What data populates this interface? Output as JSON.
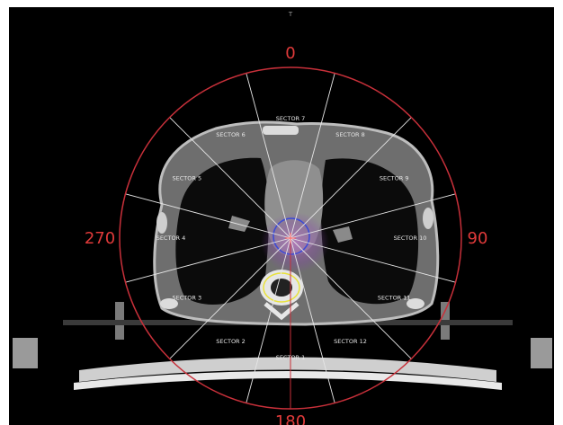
{
  "orientation_marker": "T",
  "angle_labels": {
    "top": "0",
    "right": "90",
    "bottom": "180",
    "left": "270"
  },
  "sectors": [
    "SECTOR 1",
    "SECTOR 2",
    "SECTOR 3",
    "SECTOR 4",
    "SECTOR 5",
    "SECTOR 6",
    "SECTOR 7",
    "SECTOR 8",
    "SECTOR 9",
    "SECTOR 10",
    "SECTOR 11",
    "SECTOR 12"
  ],
  "colors": {
    "background": "#000000",
    "ring": "#c8303a",
    "sector_lines": "#e6e6e6",
    "angle_text": "#e03a3a",
    "bone": "#d9d9d9",
    "soft_tissue": "#6e6e6e",
    "heart": "#8f8f8f",
    "lung": "#0b0b0b",
    "dose_magenta": "#a04ab8",
    "dose_blue": "#3a4ad8",
    "spine_contour": "#e8e23a"
  },
  "icons": {
    "isocenter": "crosshair-icon"
  }
}
